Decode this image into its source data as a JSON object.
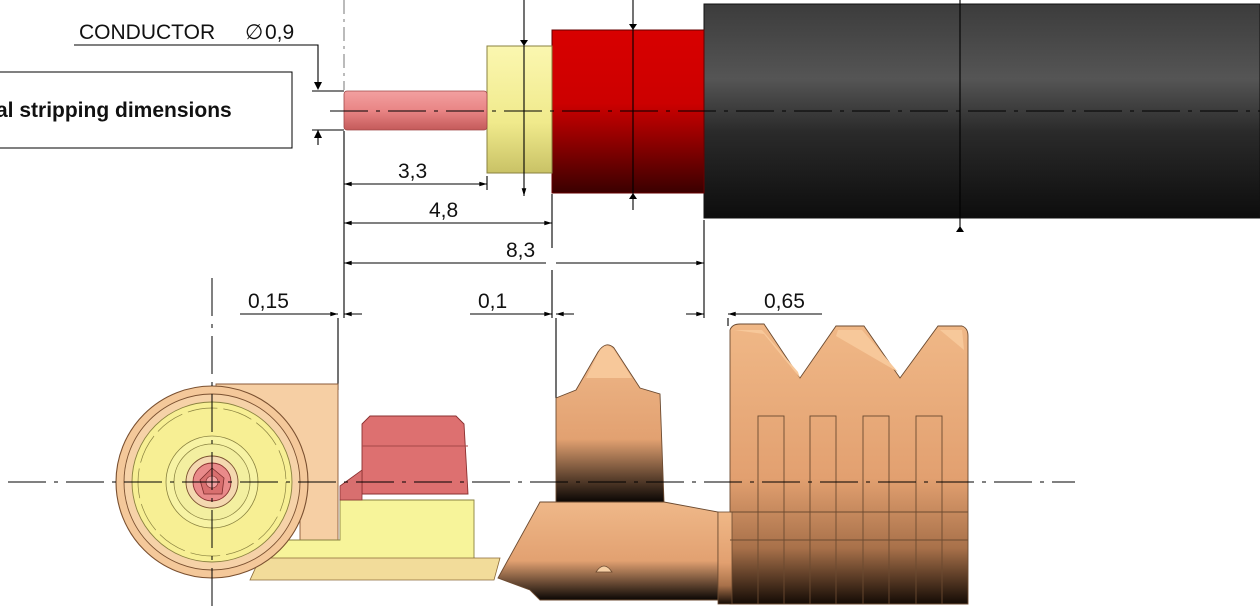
{
  "label": {
    "conductor_text": "CONDUCTOR",
    "conductor_symbol": "∅",
    "conductor_value": "0,9",
    "title_partial": "al stripping dimensions"
  },
  "dimensions": {
    "d_3_3": "3,3",
    "d_4_8": "4,8",
    "d_8_3": "8,3",
    "d_0_15": "0,15",
    "d_0_1": "0,1",
    "d_0_65": "0,65"
  },
  "colors": {
    "conductor": "#e98585",
    "dielectric": "#f4f09a",
    "shield": "#cc0000",
    "jacket": "#3a3a3a",
    "contact": "#e6a878",
    "contact_light": "#f6cfa4",
    "insert": "#f7f49a",
    "latch": "#d86f6f"
  }
}
